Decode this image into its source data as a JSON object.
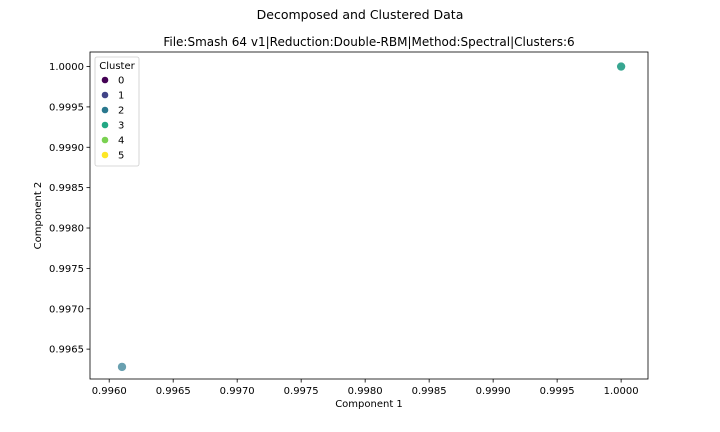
{
  "figure": {
    "suptitle": "Decomposed and Clustered Data"
  },
  "chart_data": {
    "type": "scatter",
    "title": "File:Smash 64 v1|Reduction:Double-RBM|Method:Spectral|Clusters:6",
    "xlabel": "Component 1",
    "ylabel": "Component 2",
    "xlim": [
      0.99585,
      1.00021
    ],
    "ylim": [
      0.99613,
      1.00018
    ],
    "xticks": [
      "0.9960",
      "0.9965",
      "0.9970",
      "0.9975",
      "0.9980",
      "0.9985",
      "0.9990",
      "0.9995",
      "1.0000"
    ],
    "xtick_values": [
      0.996,
      0.9965,
      0.997,
      0.9975,
      0.998,
      0.9985,
      0.999,
      0.9995,
      1.0
    ],
    "yticks": [
      "0.9965",
      "0.9970",
      "0.9975",
      "0.9980",
      "0.9985",
      "0.9990",
      "0.9995",
      "1.0000"
    ],
    "ytick_values": [
      0.9965,
      0.997,
      0.9975,
      0.998,
      0.9985,
      0.999,
      0.9995,
      1.0
    ],
    "grid": false,
    "legend": {
      "title": "Cluster",
      "placement": "upper-left",
      "entries": [
        {
          "label": "0",
          "color": "#440154"
        },
        {
          "label": "1",
          "color": "#414487"
        },
        {
          "label": "2",
          "color": "#2a788e"
        },
        {
          "label": "3",
          "color": "#22a884"
        },
        {
          "label": "4",
          "color": "#7ad151"
        },
        {
          "label": "5",
          "color": "#fde725"
        }
      ]
    },
    "points": [
      {
        "x": 0.9961,
        "y": 0.99628,
        "cluster": "2",
        "color": "#2a788e",
        "alpha": 0.7
      },
      {
        "x": 1.0,
        "y": 1.0,
        "cluster": "2",
        "color": "#2a788e",
        "alpha": 0.7
      },
      {
        "x": 1.0,
        "y": 1.0,
        "cluster": "3",
        "color": "#22a884",
        "alpha": 0.7
      }
    ]
  }
}
